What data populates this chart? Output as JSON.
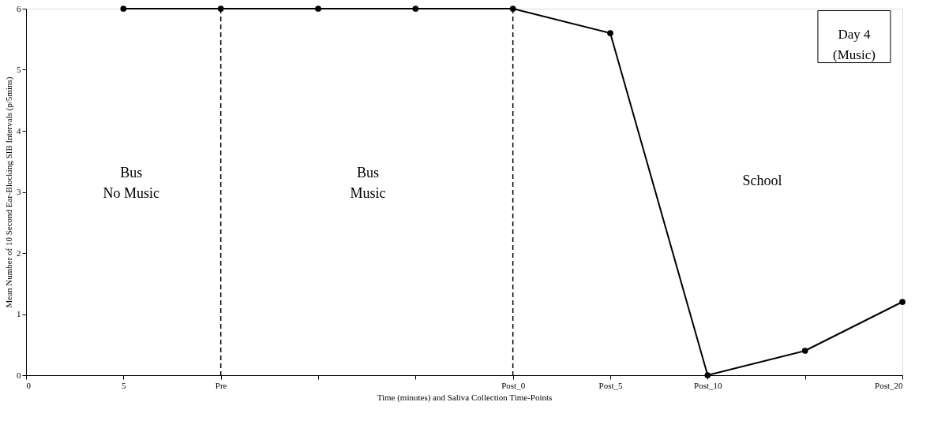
{
  "chart_data": {
    "type": "line",
    "xlabel": "Time (minutes) and Saliva Collection Time-Points",
    "ylabel": "Mean Number of 10 Second Ear-Blocking SIB Intervals (p/5mins)",
    "categories": [
      "0",
      "5",
      "Pre",
      null,
      null,
      "Post_0",
      "Post_5",
      "Post_10",
      null,
      "Post_20"
    ],
    "series": [
      {
        "color": "#000000",
        "values": [
          null,
          6,
          6,
          6,
          6,
          6,
          5.6,
          0,
          0.4,
          1.2
        ]
      }
    ],
    "ylim": [
      0,
      6
    ],
    "yticks": [
      0,
      1,
      2,
      3,
      4,
      5,
      6
    ],
    "ref_lines": [
      {
        "axis": "x",
        "value": "Pre",
        "color": "#000000",
        "line_style": "dashed"
      },
      {
        "axis": "x",
        "value": "Post_0",
        "color": "#000000",
        "line_style": "dashed"
      }
    ],
    "annotations": [
      "Bus\nNo Music",
      "Bus\nMusic",
      "School",
      "Day 4\n(Music)"
    ],
    "marker": "circle",
    "line_style": "solid",
    "grid": false
  }
}
